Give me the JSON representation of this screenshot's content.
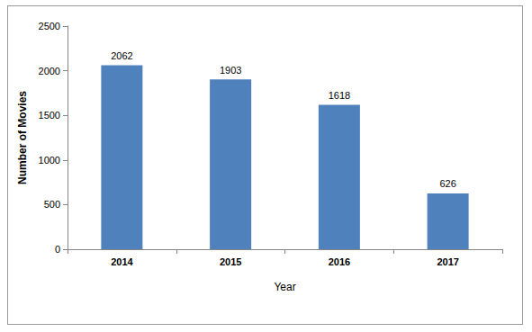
{
  "chart_data": {
    "type": "bar",
    "x_label": "Year",
    "y_label": "Number of Movies",
    "categories": [
      "2014",
      "2015",
      "2016",
      "2017"
    ],
    "values": [
      2062,
      1903,
      1618,
      626
    ],
    "color": "#4f81bd",
    "ylim": [
      0,
      2500
    ],
    "yticks": [
      0,
      500,
      1000,
      1500,
      2000,
      2500
    ],
    "grid": false,
    "data_labels": true
  }
}
